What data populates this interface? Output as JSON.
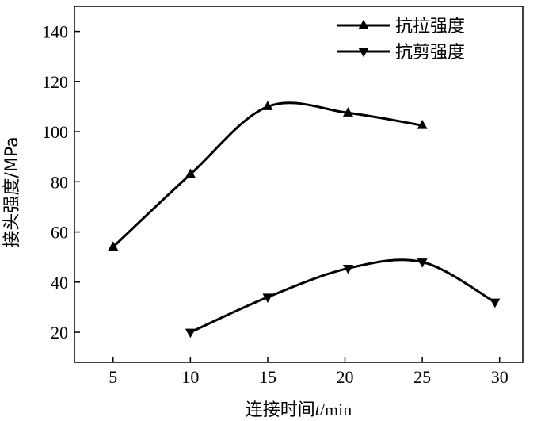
{
  "chart_data": {
    "type": "line",
    "title": "",
    "xlabel_prefix": "连接时间",
    "xlabel_var": "t",
    "xlabel_unit": "/min",
    "ylabel": "接头强度/MPa",
    "xlim": [
      2.5,
      31.5
    ],
    "ylim": [
      8,
      150
    ],
    "x_ticks": [
      5,
      10,
      15,
      20,
      25,
      30
    ],
    "y_ticks": [
      20,
      40,
      60,
      80,
      100,
      120,
      140
    ],
    "legend_position": "top-right",
    "grid": false,
    "series": [
      {
        "name": "抗拉强度",
        "marker": "triangle-up",
        "color": "#000000",
        "x": [
          5,
          10,
          15,
          20.2,
          25
        ],
        "y": [
          54,
          83,
          110,
          107.5,
          102.5
        ]
      },
      {
        "name": "抗剪强度",
        "marker": "triangle-down",
        "color": "#000000",
        "x": [
          10,
          15,
          20.2,
          25,
          29.7
        ],
        "y": [
          20,
          34,
          45.5,
          48,
          32
        ]
      }
    ]
  }
}
